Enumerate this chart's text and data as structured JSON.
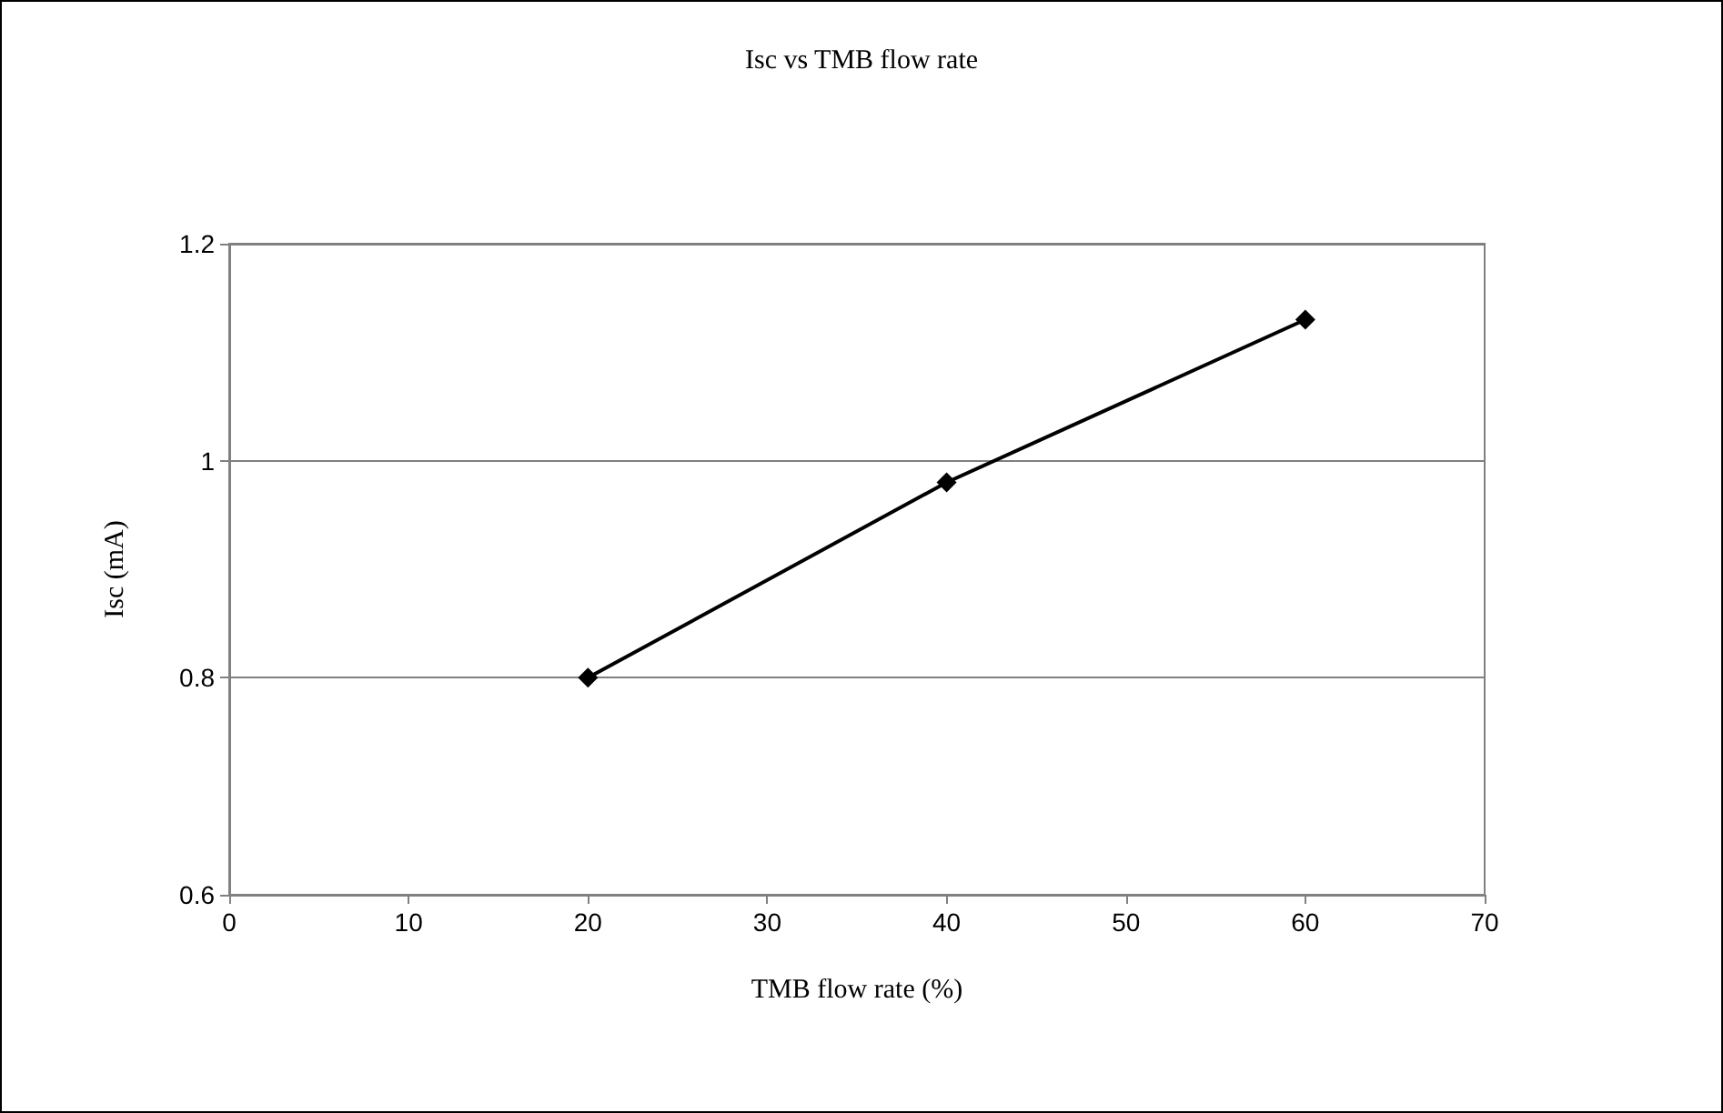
{
  "chart_data": {
    "type": "line",
    "title": "Isc vs TMB flow rate",
    "xlabel": "TMB flow rate (%)",
    "ylabel": "Isc (mA)",
    "x": [
      20,
      40,
      60
    ],
    "series": [
      {
        "color": "#000000",
        "values": [
          0.8,
          0.98,
          1.13
        ]
      }
    ],
    "xlim": [
      0,
      70
    ],
    "xticks": [
      0,
      10,
      20,
      30,
      40,
      50,
      60,
      70
    ],
    "ylim": [
      0.6,
      1.2
    ],
    "yticks": [
      0.6,
      0.8,
      1,
      1.2
    ],
    "grid": "y",
    "marker": "diamond",
    "line_style": "solid"
  }
}
